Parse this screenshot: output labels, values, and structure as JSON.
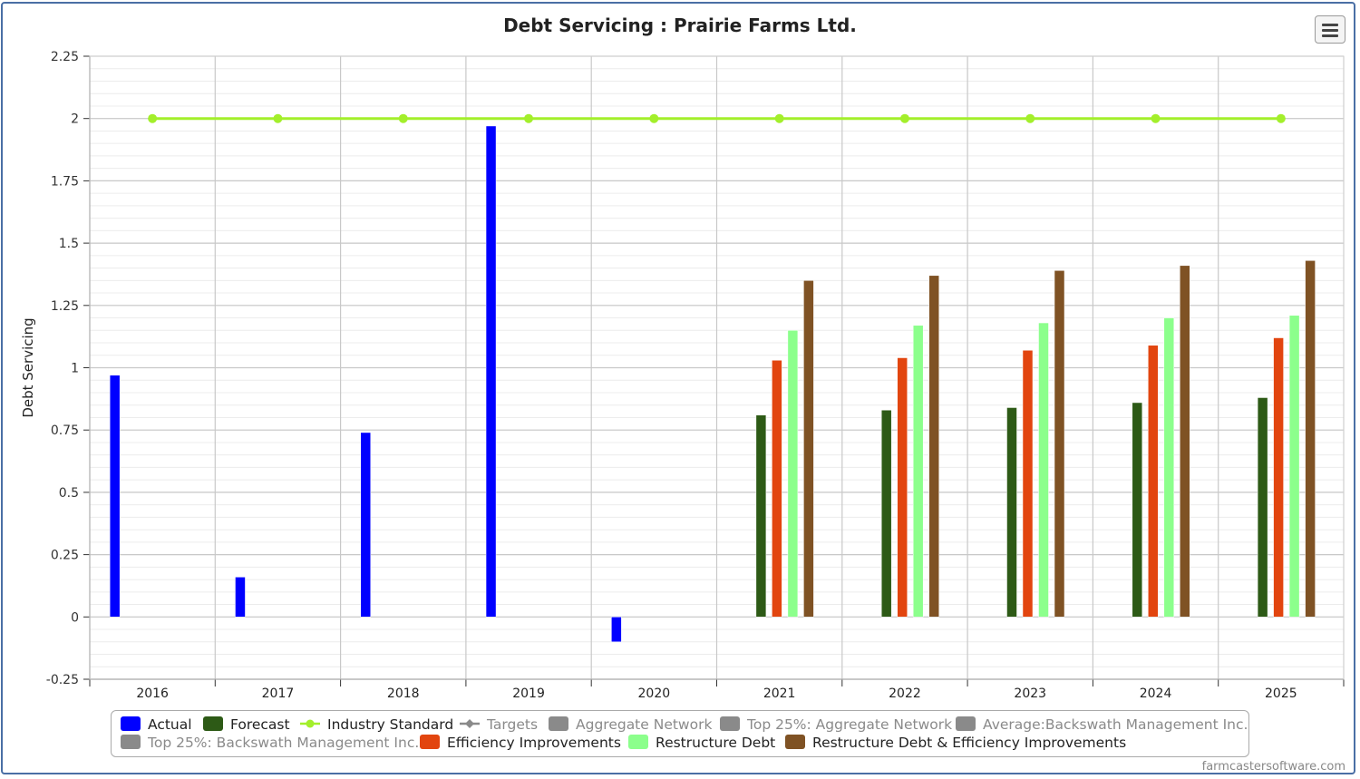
{
  "chart_data": {
    "type": "bar",
    "title": "Debt Servicing : Prairie Farms Ltd.",
    "ylabel": "Debt Servicing",
    "xlabel": "",
    "ylim": [
      -0.25,
      2.25
    ],
    "yticks": [
      "-0.25",
      "0",
      "0.25",
      "0.5",
      "0.75",
      "1",
      "1.25",
      "1.5",
      "1.75",
      "2",
      "2.25"
    ],
    "categories": [
      "2016",
      "2017",
      "2018",
      "2019",
      "2020",
      "2021",
      "2022",
      "2023",
      "2024",
      "2025"
    ],
    "grid": true,
    "legend_position": "bottom",
    "series": [
      {
        "name": "Actual",
        "color": "#0000ff",
        "kind": "bar",
        "values": [
          0.97,
          0.16,
          0.74,
          1.97,
          -0.1,
          null,
          null,
          null,
          null,
          null
        ]
      },
      {
        "name": "Forecast",
        "color": "#2d5a16",
        "kind": "bar",
        "values": [
          null,
          null,
          null,
          null,
          null,
          0.81,
          0.83,
          0.84,
          0.86,
          0.88
        ]
      },
      {
        "name": "Efficiency Improvements",
        "color": "#e2450f",
        "kind": "bar",
        "values": [
          null,
          null,
          null,
          null,
          null,
          1.03,
          1.04,
          1.07,
          1.09,
          1.12
        ]
      },
      {
        "name": "Restructure Debt",
        "color": "#8cff8c",
        "kind": "bar",
        "values": [
          null,
          null,
          null,
          null,
          null,
          1.15,
          1.17,
          1.18,
          1.2,
          1.21
        ]
      },
      {
        "name": "Restructure Debt & Efficiency Improvements",
        "color": "#7f5224",
        "kind": "bar",
        "values": [
          null,
          null,
          null,
          null,
          null,
          1.35,
          1.37,
          1.39,
          1.41,
          1.43
        ]
      },
      {
        "name": "Industry Standard",
        "color": "#a3ef2b",
        "kind": "line",
        "values": [
          2,
          2,
          2,
          2,
          2,
          2,
          2,
          2,
          2,
          2
        ]
      }
    ]
  },
  "legend": {
    "items": [
      {
        "label": "Actual",
        "color": "#0000ff",
        "icon": "square",
        "active": true
      },
      {
        "label": "Forecast",
        "color": "#2d5a16",
        "icon": "square",
        "active": true
      },
      {
        "label": "Industry Standard",
        "color": "#a3ef2b",
        "icon": "line-dot",
        "active": true
      },
      {
        "label": "Targets",
        "color": "#8a8a8a",
        "icon": "line-diamond",
        "active": false
      },
      {
        "label": "Aggregate Network",
        "color": "#8a8a8a",
        "icon": "square",
        "active": false
      },
      {
        "label": "Top 25%: Aggregate Network",
        "color": "#8a8a8a",
        "icon": "square",
        "active": false
      },
      {
        "label": "Average:Backswath Management Inc.",
        "color": "#8a8a8a",
        "icon": "square",
        "active": false
      },
      {
        "label": "Top 25%: Backswath Management Inc.",
        "color": "#8a8a8a",
        "icon": "square",
        "active": false
      },
      {
        "label": "Efficiency Improvements",
        "color": "#e2450f",
        "icon": "square",
        "active": true
      },
      {
        "label": "Restructure Debt",
        "color": "#8cff8c",
        "icon": "square",
        "active": true
      },
      {
        "label": "Restructure Debt & Efficiency Improvements",
        "color": "#7f5224",
        "icon": "square",
        "active": true
      }
    ]
  },
  "menu": {
    "icon": "hamburger-menu-icon"
  },
  "credit": "farmcastersoftware.com"
}
